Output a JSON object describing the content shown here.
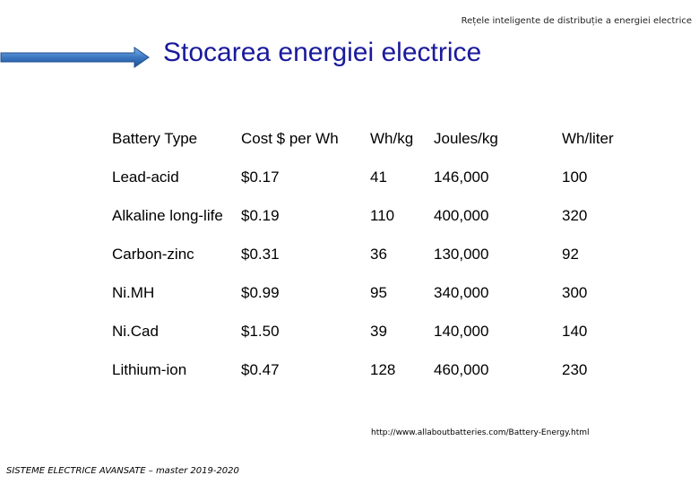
{
  "header": {
    "subtitle": "Rețele inteligente de distribuție a energiei electrice"
  },
  "slide": {
    "title": "Stocarea energiei electrice"
  },
  "table": {
    "columns": [
      "Battery Type",
      "Cost $ per Wh",
      "Wh/kg",
      "Joules/kg",
      "Wh/liter"
    ],
    "rows": [
      [
        "Lead-acid",
        "$0.17",
        "41",
        "146,000",
        "100"
      ],
      [
        "Alkaline long-life",
        "$0.19",
        "110",
        "400,000",
        "320"
      ],
      [
        "Carbon-zinc",
        "$0.31",
        "36",
        "130,000",
        "92"
      ],
      [
        "Ni.MH",
        "$0.99",
        "95",
        "340,000",
        "300"
      ],
      [
        "Ni.Cad",
        "$1.50",
        "39",
        "140,000",
        "140"
      ],
      [
        "Lithium-ion",
        "$0.47",
        "128",
        "460,000",
        "230"
      ]
    ]
  },
  "source": {
    "url": "http://www.allaboutbatteries.com/Battery-Energy.html"
  },
  "footer": {
    "text": "SISTEME ELECTRICE AVANSATE – master 2019-2020"
  },
  "colors": {
    "title": "#1a1a9c",
    "arrow": "#3b78c2"
  }
}
